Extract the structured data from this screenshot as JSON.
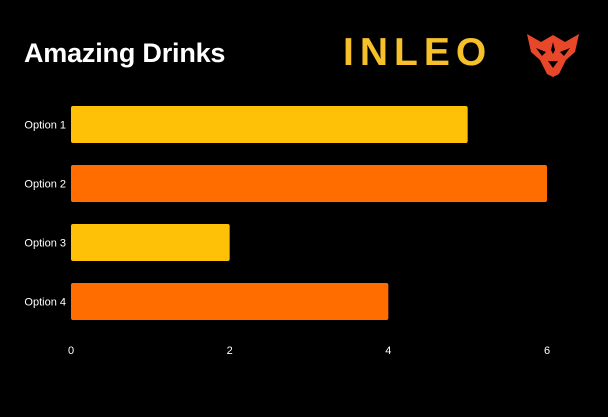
{
  "header": {
    "title": "Amazing Drinks",
    "logo_text": "INLEO"
  },
  "colors": {
    "background": "#000000",
    "bar_yellow": "#ffc107",
    "bar_orange": "#ff6d00",
    "logo_gold": "#f5c02a",
    "logo_red": "#e8472a",
    "text": "#ffffff"
  },
  "chart_data": {
    "type": "bar",
    "orientation": "horizontal",
    "title": "Amazing Drinks",
    "categories": [
      "Option 1",
      "Option 2",
      "Option 3",
      "Option 4"
    ],
    "values": [
      5,
      6,
      2,
      4
    ],
    "bar_colors": [
      "#ffc107",
      "#ff6d00",
      "#ffc107",
      "#ff6d00"
    ],
    "xticks": [
      0,
      2,
      4,
      6
    ],
    "xlim": [
      0,
      6.3
    ],
    "xlabel": "",
    "ylabel": "",
    "grid": false,
    "legend": "none"
  }
}
